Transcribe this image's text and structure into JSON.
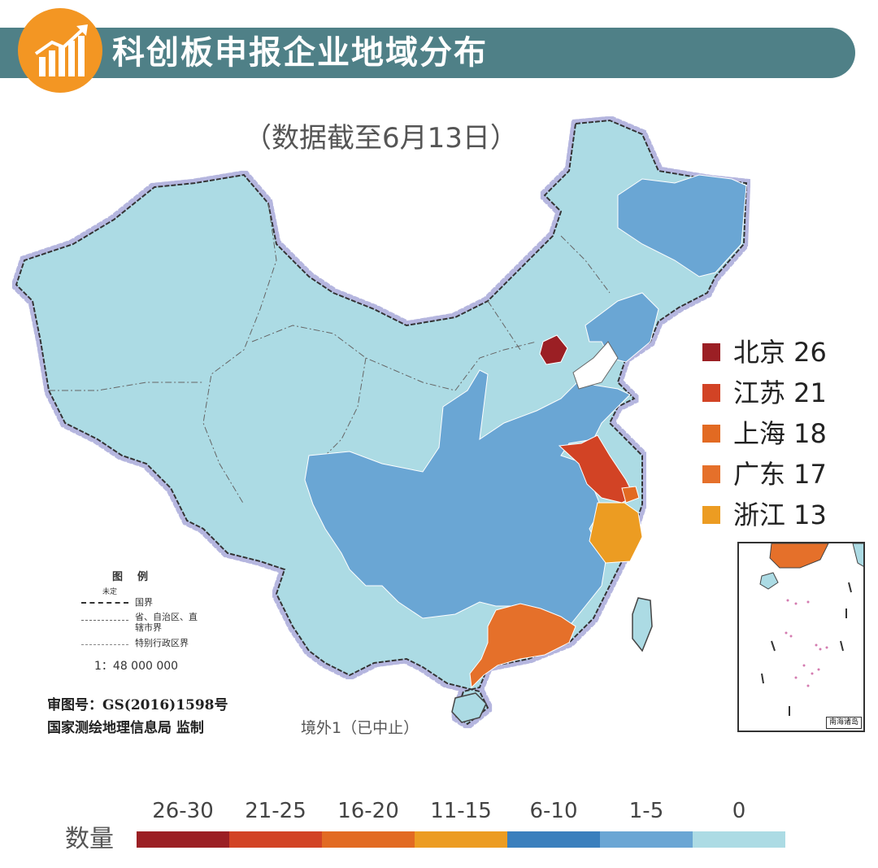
{
  "header": {
    "title": "科创板申报企业地域分布",
    "icon": "rising-bar-chart-icon",
    "accent_color": "#f39623",
    "banner_color": "#4f8087"
  },
  "subtitle": "（数据截至6月13日）",
  "ranking": [
    {
      "label": "北京 26",
      "color": "#9b1f24"
    },
    {
      "label": "江苏 21",
      "color": "#d24325"
    },
    {
      "label": "上海 18",
      "color": "#e26a22"
    },
    {
      "label": "广东 17",
      "color": "#e5702a"
    },
    {
      "label": "浙江 13",
      "color": "#ec9c22"
    }
  ],
  "map_legend": {
    "title": "图例",
    "undetermined": "未定",
    "national_border": "国界",
    "provincial_border": "省、自治区、直辖市界",
    "sar_border": "特别行政区界",
    "scale": "1：48 000 000"
  },
  "review_number": "审图号：GS(2016)1598号",
  "surveyor": "国家测绘地理信息局 监制",
  "overseas_note": "境外1（已中止）",
  "inset_caption": "南海诸岛",
  "color_scale": {
    "title": "数量",
    "bins": [
      {
        "label": "26-30",
        "color": "#9b1f24"
      },
      {
        "label": "21-25",
        "color": "#d24325"
      },
      {
        "label": "16-20",
        "color": "#e26a22"
      },
      {
        "label": "11-15",
        "color": "#ec9c22"
      },
      {
        "label": "6-10",
        "color": "#3a7fbd"
      },
      {
        "label": "1-5",
        "color": "#6aa6d4"
      },
      {
        "label": "0",
        "color": "#acdbe4"
      }
    ]
  },
  "province_values": {
    "北京": 26,
    "江苏": 21,
    "上海": 18,
    "广东": 17,
    "浙江": 13
  }
}
